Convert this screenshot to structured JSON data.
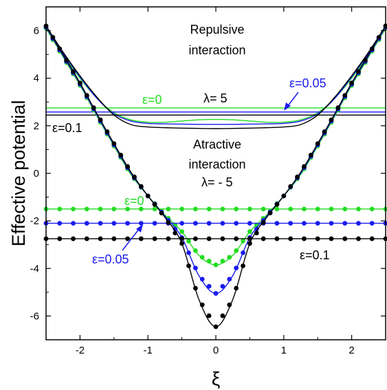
{
  "chart_data": {
    "type": "line",
    "title": "",
    "xlabel": "ξ",
    "ylabel": "Effective potential",
    "xlim": [
      -2.5,
      2.5
    ],
    "ylim": [
      -7.0,
      7.0
    ],
    "x_ticks": [
      -2,
      -1,
      0,
      1,
      2
    ],
    "y_ticks": [
      -6,
      -4,
      -2,
      0,
      2,
      4,
      6
    ],
    "grid": false,
    "colors": {
      "eps0": "#22dd22",
      "eps005": "#1a1aee",
      "eps01": "#000000"
    },
    "annotations": {
      "repulsive_line1": "Repulsive",
      "repulsive_line2": "interaction",
      "attractive_line1": "Atractive",
      "attractive_line2": "interaction",
      "lambda_pos": "λ= 5",
      "lambda_neg": "λ= - 5",
      "eps0_upper": "ε=0",
      "eps005_upper": "ε=0.05",
      "eps01_upper": "ε=0.1",
      "eps0_lower": "ε=0",
      "eps005_lower": "ε=0.05",
      "eps01_lower": "ε=0.1"
    },
    "series": [
      {
        "group": "lambda=5",
        "epsilon": "0",
        "color": "#22dd22",
        "x": [
          -2.5,
          -2.25,
          -2.0,
          -1.75,
          -1.5,
          -1.25,
          -1.0,
          -0.75,
          -0.5,
          -0.25,
          0.0,
          0.25,
          0.5,
          0.75,
          1.0,
          1.25,
          1.5,
          1.75,
          2.0,
          2.25,
          2.5
        ],
        "y": [
          6.1,
          5.0,
          4.0,
          3.15,
          2.55,
          2.25,
          2.15,
          2.15,
          2.2,
          2.25,
          2.27,
          2.25,
          2.2,
          2.15,
          2.15,
          2.25,
          2.55,
          3.15,
          4.0,
          5.0,
          6.1
        ],
        "energy": 2.75
      },
      {
        "group": "lambda=5",
        "epsilon": "0.05",
        "color": "#1a1aee",
        "x": [
          -2.5,
          -2.25,
          -2.0,
          -1.75,
          -1.5,
          -1.25,
          -1.0,
          -0.75,
          -0.5,
          -0.25,
          0.0,
          0.25,
          0.5,
          0.75,
          1.0,
          1.25,
          1.5,
          1.75,
          2.0,
          2.25,
          2.5
        ],
        "y": [
          6.15,
          5.05,
          4.05,
          3.15,
          2.5,
          2.2,
          2.1,
          2.08,
          2.07,
          2.06,
          2.06,
          2.06,
          2.07,
          2.08,
          2.1,
          2.2,
          2.5,
          3.15,
          4.05,
          5.05,
          6.15
        ],
        "energy": 2.58
      },
      {
        "group": "lambda=5",
        "epsilon": "0.1",
        "color": "#000000",
        "x": [
          -2.5,
          -2.25,
          -2.0,
          -1.75,
          -1.5,
          -1.25,
          -1.0,
          -0.75,
          -0.5,
          -0.25,
          0.0,
          0.25,
          0.5,
          0.75,
          1.0,
          1.25,
          1.5,
          1.75,
          2.0,
          2.25,
          2.5
        ],
        "y": [
          6.2,
          5.1,
          4.1,
          3.2,
          2.45,
          2.05,
          1.95,
          1.92,
          1.9,
          1.89,
          1.88,
          1.89,
          1.9,
          1.92,
          1.95,
          2.05,
          2.45,
          3.2,
          4.1,
          5.1,
          6.2
        ],
        "energy": 2.45
      },
      {
        "group": "lambda=-5",
        "epsilon": "0",
        "color": "#22dd22",
        "x": [
          -2.5,
          -2.25,
          -2.0,
          -1.75,
          -1.5,
          -1.25,
          -1.0,
          -0.75,
          -0.5,
          -0.25,
          0.0,
          0.25,
          0.5,
          0.75,
          1.0,
          1.25,
          1.5,
          1.75,
          2.0,
          2.25,
          2.5
        ],
        "y": [
          6.1,
          4.9,
          3.7,
          2.4,
          1.15,
          -0.05,
          -0.95,
          -1.75,
          -2.45,
          -3.45,
          -3.85,
          -3.45,
          -2.45,
          -1.75,
          -0.95,
          -0.05,
          1.15,
          2.4,
          3.7,
          4.9,
          6.1
        ],
        "energy": -1.5
      },
      {
        "group": "lambda=-5",
        "epsilon": "0.05",
        "color": "#1a1aee",
        "x": [
          -2.5,
          -2.25,
          -2.0,
          -1.75,
          -1.5,
          -1.25,
          -1.0,
          -0.75,
          -0.5,
          -0.25,
          0.0,
          0.25,
          0.5,
          0.75,
          1.0,
          1.25,
          1.5,
          1.75,
          2.0,
          2.25,
          2.5
        ],
        "y": [
          6.15,
          4.95,
          3.75,
          2.45,
          1.2,
          0.0,
          -0.95,
          -1.8,
          -2.7,
          -4.3,
          -5.05,
          -4.3,
          -2.7,
          -1.8,
          -0.95,
          0.0,
          1.2,
          2.45,
          3.75,
          4.95,
          6.15
        ],
        "energy": -2.1
      },
      {
        "group": "lambda=-5",
        "epsilon": "0.1",
        "color": "#000000",
        "x": [
          -2.5,
          -2.25,
          -2.0,
          -1.75,
          -1.5,
          -1.25,
          -1.0,
          -0.75,
          -0.5,
          -0.25,
          0.0,
          0.25,
          0.5,
          0.75,
          1.0,
          1.25,
          1.5,
          1.75,
          2.0,
          2.25,
          2.5
        ],
        "y": [
          6.2,
          5.0,
          3.8,
          2.5,
          1.25,
          0.05,
          -0.95,
          -1.85,
          -2.95,
          -5.3,
          -6.45,
          -5.3,
          -2.95,
          -1.85,
          -0.95,
          0.05,
          1.25,
          2.5,
          3.8,
          5.0,
          6.2
        ],
        "energy": -2.75
      }
    ]
  }
}
